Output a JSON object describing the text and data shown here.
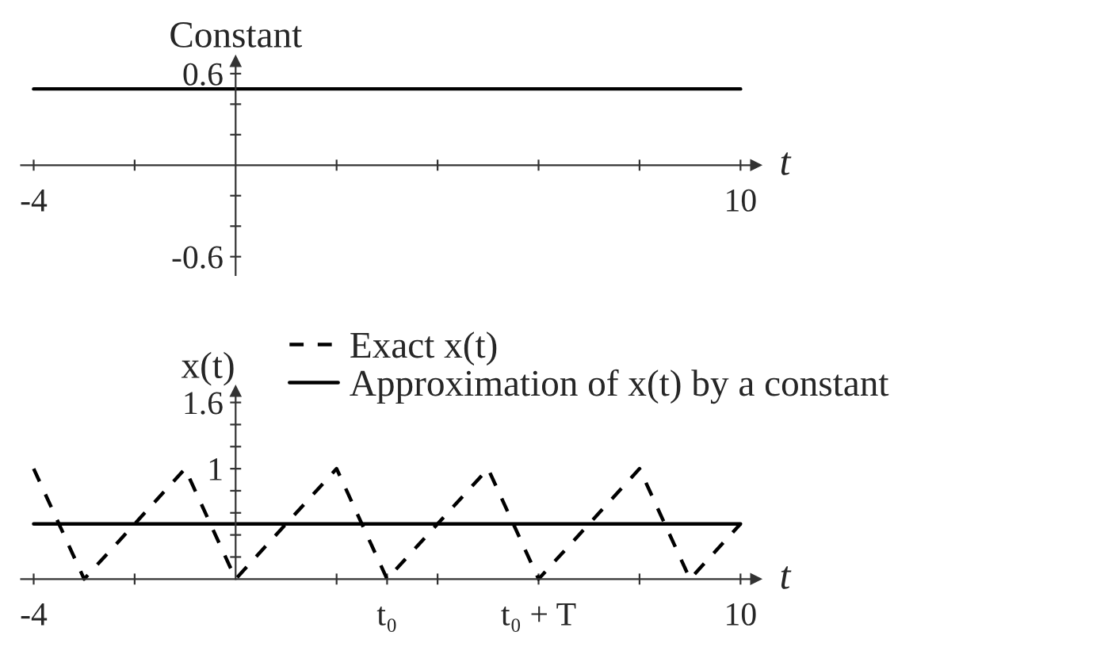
{
  "chart_data": [
    {
      "type": "line",
      "title": "Constant",
      "xlabel": "t",
      "x": [
        -4,
        10
      ],
      "series": [
        {
          "color": "#000000",
          "values": [
            0.5,
            0.5
          ],
          "line_style": "solid"
        }
      ],
      "xlim": [
        -4.25,
        10.3
      ],
      "ylim": [
        -0.72,
        0.68
      ],
      "xticks": [
        -4,
        {
          "value": -2,
          "label": null
        },
        {
          "value": 2,
          "label": null
        },
        {
          "value": 4,
          "label": null
        },
        {
          "value": 6,
          "label": null
        },
        {
          "value": 8,
          "label": null
        },
        10
      ],
      "yticks": [
        -0.6,
        {
          "value": -0.4,
          "label": null
        },
        {
          "value": -0.2,
          "label": null
        },
        {
          "value": 0.2,
          "label": null
        },
        {
          "value": 0.4,
          "label": null
        },
        0.6
      ],
      "grid": false,
      "legend": false,
      "marker": "none"
    },
    {
      "type": "line",
      "xlabel": "t",
      "ylabel": "x(t)",
      "series": [
        {
          "name": "Exact x(t)",
          "color": "#000000",
          "line_style": "dashed",
          "x": [
            -4,
            -3,
            -1,
            0,
            2,
            3,
            5,
            6,
            8,
            9,
            10
          ],
          "values": [
            1,
            0,
            1,
            0,
            1,
            0,
            1,
            0,
            1,
            0,
            0.5
          ]
        },
        {
          "name": "Approximation of x(t) by a constant",
          "color": "#000000",
          "line_style": "solid",
          "x": [
            -4,
            10
          ],
          "values": [
            0.5,
            0.5
          ]
        }
      ],
      "xlim": [
        -4.25,
        10.3
      ],
      "ylim": [
        0,
        1.7
      ],
      "xticks": [
        -4,
        {
          "value": -2,
          "label": null
        },
        {
          "value": 2,
          "label": null
        },
        {
          "value": 3,
          "label": "t₀"
        },
        {
          "value": 4,
          "label": null
        },
        {
          "value": 6,
          "label": "t₀ + T"
        },
        {
          "value": 8,
          "label": null
        },
        10
      ],
      "yticks": [
        {
          "value": 0.2,
          "label": null
        },
        {
          "value": 0.4,
          "label": null
        },
        {
          "value": 0.6,
          "label": null
        },
        {
          "value": 0.8,
          "label": null
        },
        1,
        {
          "value": 1.2,
          "label": null
        },
        {
          "value": 1.4,
          "label": null
        },
        1.6
      ],
      "grid": false,
      "legend": "top right",
      "marker": "none"
    }
  ]
}
